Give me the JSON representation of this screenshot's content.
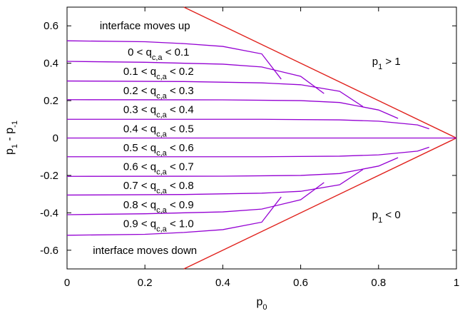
{
  "chart_data": {
    "type": "line",
    "xlabel": "p",
    "xlabel_sub": "0",
    "ylabel": "p",
    "ylabel_sub1": "1",
    "ylabel_mid": " - p",
    "ylabel_sub2": "-1",
    "xlim": [
      0,
      1
    ],
    "ylim": [
      -0.7,
      0.7
    ],
    "x_ticks": [
      0,
      0.2,
      0.4,
      0.6,
      0.8,
      1
    ],
    "x_tick_labels": [
      "0",
      "0.2",
      "0.4",
      "0.6",
      "0.8",
      "1"
    ],
    "y_ticks": [
      -0.6,
      -0.4,
      -0.2,
      0,
      0.2,
      0.4,
      0.6
    ],
    "y_tick_labels": [
      "-0.6",
      "-0.4",
      "-0.2",
      "0",
      "0.2",
      "0.4",
      "0.6"
    ],
    "grid": false,
    "colors": {
      "contour": "#9400d3",
      "boundary": "#e0201b"
    },
    "boundaries": [
      {
        "x": [
          0.3,
          1.0
        ],
        "y": [
          0.7,
          0.0
        ]
      },
      {
        "x": [
          0.3,
          1.0
        ],
        "y": [
          -0.7,
          0.0
        ]
      }
    ],
    "series": [
      {
        "x": [
          0,
          0.2,
          0.3,
          0.4,
          0.5,
          0.55
        ],
        "y": [
          0.52,
          0.515,
          0.505,
          0.49,
          0.45,
          0.315
        ]
      },
      {
        "x": [
          0,
          0.2,
          0.4,
          0.5,
          0.6,
          0.66
        ],
        "y": [
          0.41,
          0.405,
          0.395,
          0.38,
          0.33,
          0.238
        ]
      },
      {
        "x": [
          0,
          0.3,
          0.5,
          0.6,
          0.7,
          0.76
        ],
        "y": [
          0.305,
          0.302,
          0.295,
          0.285,
          0.25,
          0.168
        ]
      },
      {
        "x": [
          0,
          0.4,
          0.6,
          0.7,
          0.8,
          0.85
        ],
        "y": [
          0.205,
          0.204,
          0.2,
          0.19,
          0.15,
          0.105
        ]
      },
      {
        "x": [
          0,
          0.5,
          0.7,
          0.8,
          0.9,
          0.93
        ],
        "y": [
          0.1,
          0.1,
          0.097,
          0.09,
          0.07,
          0.049
        ]
      },
      {
        "x": [
          0,
          1.0
        ],
        "y": [
          0,
          0
        ]
      },
      {
        "x": [
          0,
          0.5,
          0.7,
          0.8,
          0.9,
          0.93
        ],
        "y": [
          -0.1,
          -0.1,
          -0.097,
          -0.09,
          -0.07,
          -0.049
        ]
      },
      {
        "x": [
          0,
          0.4,
          0.6,
          0.7,
          0.8,
          0.85
        ],
        "y": [
          -0.205,
          -0.204,
          -0.2,
          -0.19,
          -0.15,
          -0.105
        ]
      },
      {
        "x": [
          0,
          0.3,
          0.5,
          0.6,
          0.7,
          0.76
        ],
        "y": [
          -0.305,
          -0.302,
          -0.295,
          -0.285,
          -0.25,
          -0.168
        ]
      },
      {
        "x": [
          0,
          0.2,
          0.4,
          0.5,
          0.6,
          0.66
        ],
        "y": [
          -0.41,
          -0.405,
          -0.395,
          -0.38,
          -0.33,
          -0.238
        ]
      },
      {
        "x": [
          0,
          0.2,
          0.3,
          0.4,
          0.5,
          0.55
        ],
        "y": [
          -0.52,
          -0.515,
          -0.505,
          -0.49,
          -0.45,
          -0.315
        ]
      }
    ],
    "band_labels": [
      {
        "lo": "0",
        "hi": "0.1",
        "x": 0.235,
        "y": 0.46
      },
      {
        "lo": "0.1",
        "hi": "0.2",
        "x": 0.235,
        "y": 0.356
      },
      {
        "lo": "0.2",
        "hi": "0.3",
        "x": 0.235,
        "y": 0.253
      },
      {
        "lo": "0.3",
        "hi": "0.4",
        "x": 0.235,
        "y": 0.152
      },
      {
        "lo": "0.4",
        "hi": "0.5",
        "x": 0.235,
        "y": 0.05
      },
      {
        "lo": "0.5",
        "hi": "0.6",
        "x": 0.235,
        "y": -0.052
      },
      {
        "lo": "0.6",
        "hi": "0.7",
        "x": 0.235,
        "y": -0.152
      },
      {
        "lo": "0.7",
        "hi": "0.8",
        "x": 0.235,
        "y": -0.254
      },
      {
        "lo": "0.8",
        "hi": "0.9",
        "x": 0.235,
        "y": -0.356
      },
      {
        "lo": "0.9",
        "hi": "1.0",
        "x": 0.235,
        "y": -0.458
      }
    ],
    "band_var": "q",
    "band_var_sub": "c,a",
    "annotations": [
      {
        "text": "interface moves up",
        "x": 0.2,
        "y": 0.6
      },
      {
        "text": "interface moves down",
        "x": 0.2,
        "y": -0.6
      }
    ],
    "region_labels": [
      {
        "base": "p",
        "sub": "1",
        "rest": " > 1",
        "x": 0.82,
        "y": 0.41
      },
      {
        "base": "p",
        "sub": "1",
        "rest": " < 0",
        "x": 0.82,
        "y": -0.41
      }
    ]
  }
}
